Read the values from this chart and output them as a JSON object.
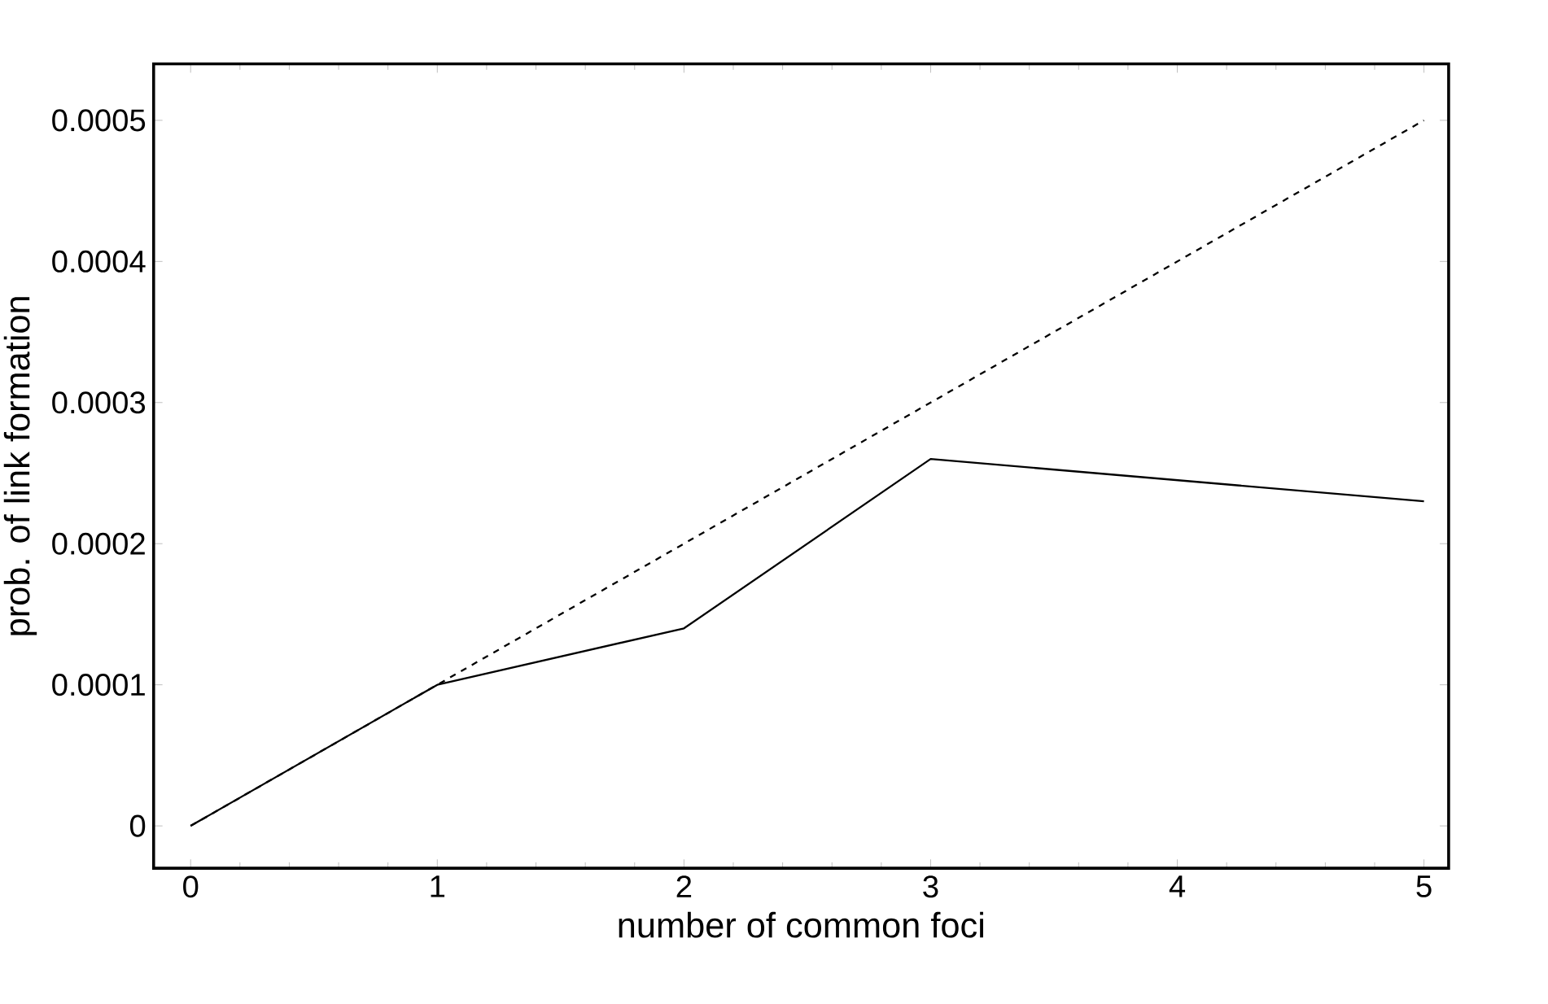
{
  "chart_data": {
    "type": "line",
    "xlabel": "number of common foci",
    "ylabel": "prob. of link formation",
    "x": [
      0,
      1,
      2,
      3,
      5
    ],
    "series": [
      {
        "color": "#000000",
        "line_style": "solid",
        "values": [
          0,
          0.0001,
          0.00014,
          0.00026,
          0.00023
        ]
      },
      {
        "type": "line",
        "color": "#000000",
        "line_style": "dashed",
        "x": [
          0,
          5
        ],
        "values": [
          0,
          0.0005
        ]
      }
    ],
    "xlim": [
      -0.15,
      5.1
    ],
    "ylim": [
      -3e-05,
      0.00054
    ],
    "xticks": [
      0,
      1,
      2,
      3,
      4,
      5
    ],
    "yticks": [
      0,
      0.0001,
      0.0002,
      0.0003,
      0.0004,
      0.0005
    ],
    "marker": "none"
  }
}
